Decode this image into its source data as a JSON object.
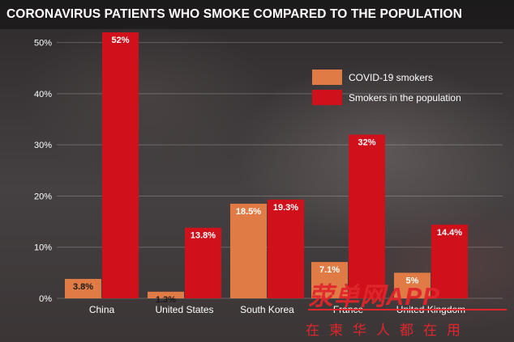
{
  "title": "CORONAVIRUS PATIENTS WHO SMOKE COMPARED TO THE POPULATION",
  "watermark": {
    "main": "荥单网APP",
    "sub": "在柬华人都在用"
  },
  "colors": {
    "covid": "#e07b45",
    "population": "#d0111b"
  },
  "chart_data": {
    "type": "bar",
    "title": "CORONAVIRUS PATIENTS WHO SMOKE COMPARED TO THE POPULATION",
    "xlabel": "",
    "ylabel": "",
    "categories": [
      "China",
      "United States",
      "South Korea",
      "France",
      "United Kingdom"
    ],
    "series": [
      {
        "name": "COVID-19 smokers",
        "values": [
          3.8,
          1.3,
          18.5,
          7.1,
          5
        ],
        "labels": [
          "3.8%",
          "1.3%",
          "18.5%",
          "7.1%",
          "5%"
        ]
      },
      {
        "name": "Smokers in the population",
        "values": [
          52,
          13.8,
          19.3,
          32,
          14.4
        ],
        "labels": [
          "52%",
          "13.8%",
          "19.3%",
          "32%",
          "14.4%"
        ]
      }
    ],
    "ylim": [
      0,
      55
    ],
    "yticks": [
      0,
      10,
      20,
      30,
      40,
      50
    ],
    "ytick_labels": [
      "0%",
      "10%",
      "20%",
      "30%",
      "40%",
      "50%"
    ],
    "grid": true,
    "legend": "top-right"
  }
}
